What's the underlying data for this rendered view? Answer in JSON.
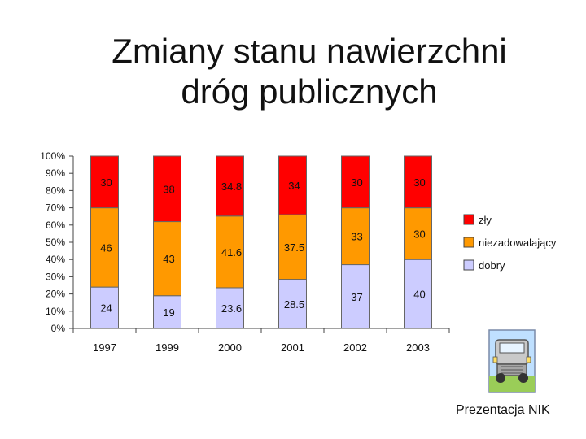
{
  "page": {
    "title_line1": "Zmiany stanu nawierzchni",
    "title_line2": "dróg publicznych",
    "footer": "Prezentacja NIK",
    "clipart_icon": "truck-icon"
  },
  "chart_data": {
    "type": "bar",
    "stacked": true,
    "normalized_percent": true,
    "categories": [
      "1997",
      "1999",
      "2000",
      "2001",
      "2002",
      "2003"
    ],
    "series": [
      {
        "name": "dobry",
        "values": [
          24,
          19,
          23.6,
          28.5,
          37,
          40
        ],
        "labels": [
          "24",
          "19",
          "23.6",
          "28.5",
          "37",
          "40"
        ],
        "color": "#ccccff"
      },
      {
        "name": "niezadowalający",
        "values": [
          46,
          43,
          41.6,
          37.5,
          33,
          30
        ],
        "labels": [
          "46",
          "43",
          "41.6",
          "37.5",
          "33",
          "30"
        ],
        "color": "#ff9900"
      },
      {
        "name": "zły",
        "values": [
          30,
          38,
          34.8,
          34,
          30,
          30
        ],
        "labels": [
          "30",
          "38",
          "34.8",
          "34",
          "30",
          "30"
        ],
        "color": "#ff0000"
      }
    ],
    "ylim": [
      0,
      100
    ],
    "yticks": [
      "0%",
      "10%",
      "20%",
      "30%",
      "40%",
      "50%",
      "60%",
      "70%",
      "80%",
      "90%",
      "100%"
    ],
    "xlabel": "",
    "ylabel": "",
    "grid": false,
    "legend_position": "right"
  }
}
